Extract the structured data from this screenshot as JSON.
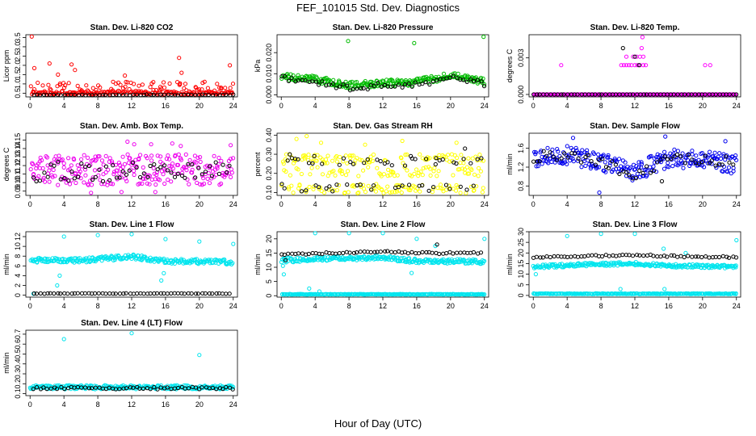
{
  "page": {
    "title": "FEF_101015  Std. Dev. Diagnostics",
    "x_axis_title": "Hour of Day (UTC)"
  },
  "chart_data": [
    {
      "id": "co2",
      "type": "scatter",
      "title": "Stan. Dev. Li-820 CO2",
      "ylabel": "Licor ppm",
      "color": "#ff0000",
      "yticks": [
        "0.5",
        "1.0",
        "1.5",
        "2.0",
        "2.5",
        "3.0",
        "3.5"
      ],
      "ytick_values": [
        0.5,
        1.0,
        1.5,
        2.0,
        2.5,
        3.0,
        3.5
      ],
      "ylim": [
        0.3,
        3.65
      ],
      "xticks": [
        "0",
        "4",
        "8",
        "12",
        "16",
        "20",
        "24"
      ],
      "xlim": [
        -0.5,
        24.5
      ],
      "series": [
        {
          "name": "colored",
          "color": "#ff0000",
          "baseline": 0.42,
          "noise_hi": 0.9,
          "noise_lo": 0.05,
          "spread": 0.7,
          "outliers": [
            [
              0.2,
              3.55
            ],
            [
              0.5,
              1.85
            ],
            [
              2.3,
              2.1
            ],
            [
              4.9,
              2.05
            ],
            [
              5.3,
              1.75
            ],
            [
              11.2,
              1.45
            ],
            [
              17.6,
              2.4
            ],
            [
              17.9,
              1.6
            ],
            [
              23.6,
              2.0
            ],
            [
              3.3,
              1.5
            ]
          ]
        },
        {
          "name": "black",
          "color": "#000000",
          "baseline": 0.41,
          "spread": 0.02
        }
      ]
    },
    {
      "id": "pressure",
      "type": "scatter",
      "title": "Stan. Dev. Li-820 Pressure",
      "ylabel": "kPa",
      "color": "#00aa00",
      "yticks": [
        "0.000",
        "0.010",
        "0.020"
      ],
      "ytick_values": [
        0,
        0.01,
        0.02
      ],
      "ylim": [
        -0.001,
        0.0285
      ],
      "xticks": [
        "0",
        "4",
        "8",
        "12",
        "16",
        "20",
        "24"
      ],
      "xlim": [
        -0.5,
        24.5
      ],
      "series": [
        {
          "name": "colored",
          "color": "#00bb00",
          "trend": [
            [
              0,
              0.0085
            ],
            [
              4,
              0.0075
            ],
            [
              8,
              0.0045
            ],
            [
              12,
              0.0055
            ],
            [
              16,
              0.006
            ],
            [
              20,
              0.009
            ],
            [
              24,
              0.0065
            ]
          ],
          "spread": 0.0016,
          "outliers": [
            [
              7.9,
              0.0255
            ],
            [
              15.7,
              0.0245
            ],
            [
              23.9,
              0.0275
            ]
          ]
        },
        {
          "name": "black",
          "color": "#000000",
          "trend": [
            [
              0,
              0.0075
            ],
            [
              4,
              0.0065
            ],
            [
              8,
              0.0035
            ],
            [
              12,
              0.0045
            ],
            [
              16,
              0.005
            ],
            [
              20,
              0.008
            ],
            [
              24,
              0.005
            ]
          ],
          "spread": 0.0015
        }
      ]
    },
    {
      "id": "temp",
      "type": "scatter",
      "title": "Stan. Dev. Li-820 Temp.",
      "ylabel": "degrees C",
      "color": "#ff00ff",
      "yticks": [
        "0.000",
        "0.003"
      ],
      "ytick_values": [
        0,
        0.003
      ],
      "ylim": [
        -0.0002,
        0.0049
      ],
      "xticks": [
        "0",
        "4",
        "8",
        "12",
        "16",
        "20",
        "24"
      ],
      "xlim": [
        -0.5,
        24.5
      ],
      "series": [
        {
          "name": "colored",
          "color": "#ff00ff",
          "baseline": 0,
          "spread": 0,
          "outliers": [
            [
              3.3,
              0.0024
            ],
            [
              10.4,
              0.0024
            ],
            [
              10.7,
              0.0024
            ],
            [
              11.0,
              0.0024
            ],
            [
              11.3,
              0.0024
            ],
            [
              11.6,
              0.0024
            ],
            [
              12.0,
              0.0024
            ],
            [
              12.3,
              0.0024
            ],
            [
              12.6,
              0.0024
            ],
            [
              13.0,
              0.0024
            ],
            [
              13.3,
              0.0024
            ],
            [
              11.0,
              0.0031
            ],
            [
              11.8,
              0.0031
            ],
            [
              12.2,
              0.0031
            ],
            [
              12.6,
              0.0031
            ],
            [
              13.0,
              0.0031
            ],
            [
              12.8,
              0.0038
            ],
            [
              12.9,
              0.0047
            ],
            [
              20.3,
              0.0024
            ],
            [
              20.9,
              0.0024
            ]
          ]
        },
        {
          "name": "black",
          "color": "#000000",
          "baseline": 0,
          "spread": 0,
          "outliers": [
            [
              10.6,
              0.0038
            ],
            [
              12.0,
              0.0031
            ],
            [
              12.5,
              0.0024
            ]
          ]
        }
      ]
    },
    {
      "id": "ambbox",
      "type": "scatter",
      "title": "Stan. Dev. Amb. Box Temp.",
      "ylabel": "degrees C",
      "color": "#ff00ff",
      "yticks": [
        "0.09",
        "0.10",
        "0.11",
        "0.12",
        "0.13",
        "0.14",
        "0.15"
      ],
      "ytick_values": [
        0.09,
        0.1,
        0.11,
        0.12,
        0.13,
        0.14,
        0.15
      ],
      "ylim": [
        0.085,
        0.158
      ],
      "xticks": [
        "0",
        "4",
        "8",
        "12",
        "16",
        "20",
        "24"
      ],
      "xlim": [
        -0.5,
        24.5
      ],
      "series": [
        {
          "name": "colored",
          "color": "#ee00ee",
          "baseline": 0.115,
          "spread": 0.018,
          "outliers": [
            [
              11.5,
              0.148
            ],
            [
              12.3,
              0.145
            ],
            [
              14.3,
              0.145
            ],
            [
              16.8,
              0.146
            ],
            [
              17.8,
              0.143
            ],
            [
              23.7,
              0.144
            ],
            [
              7.2,
              0.088
            ],
            [
              10.8,
              0.089
            ],
            [
              14.8,
              0.089
            ]
          ]
        },
        {
          "name": "black",
          "color": "#000000",
          "baseline": 0.113,
          "spread": 0.012
        }
      ]
    },
    {
      "id": "rh",
      "type": "scatter",
      "title": "Stan. Dev. Gas Stream RH",
      "ylabel": "percent",
      "color": "#ffff00",
      "yticks": [
        "0.10",
        "0.20",
        "0.30",
        "0.40"
      ],
      "ytick_values": [
        0.1,
        0.2,
        0.3,
        0.4
      ],
      "ylim": [
        0.085,
        0.41
      ],
      "xticks": [
        "0",
        "4",
        "8",
        "12",
        "16",
        "20",
        "24"
      ],
      "xlim": [
        -0.5,
        24.5
      ],
      "series": [
        {
          "name": "colored",
          "color": "#ffff00",
          "bands": [
            0.12,
            0.21,
            0.275
          ],
          "spread": 0.025,
          "outliers": [
            [
              1.8,
              0.38
            ],
            [
              3.0,
              0.395
            ],
            [
              4.7,
              0.36
            ],
            [
              9.9,
              0.35
            ],
            [
              14.3,
              0.37
            ],
            [
              20.7,
              0.36
            ]
          ]
        },
        {
          "name": "black",
          "color": "#000000",
          "bands": [
            0.125,
            0.26
          ],
          "spread": 0.02,
          "outliers": [
            [
              1.0,
              0.3
            ],
            [
              3.9,
              0.29
            ],
            [
              15.3,
              0.29
            ],
            [
              21.7,
              0.33
            ],
            [
              18.3,
              0.28
            ]
          ]
        }
      ]
    },
    {
      "id": "sample",
      "type": "scatter",
      "title": "Stan. Dev. Sample Flow",
      "ylabel": "ml/min",
      "color": "#0000ff",
      "yticks": [
        "0.8",
        "1.2",
        "1.6"
      ],
      "ytick_values": [
        0.8,
        1.2,
        1.6
      ],
      "ylim": [
        0.6,
        1.92
      ],
      "xticks": [
        "0",
        "4",
        "8",
        "12",
        "16",
        "20",
        "24"
      ],
      "xlim": [
        -0.5,
        24.5
      ],
      "series": [
        {
          "name": "colored",
          "color": "#0000ee",
          "trend": [
            [
              0,
              1.4
            ],
            [
              4,
              1.45
            ],
            [
              8,
              1.3
            ],
            [
              12,
              1.1
            ],
            [
              16,
              1.4
            ],
            [
              20,
              1.35
            ],
            [
              24,
              1.25
            ]
          ],
          "spread": 0.2,
          "outliers": [
            [
              7.8,
              0.66
            ],
            [
              4.7,
              1.82
            ],
            [
              15.6,
              1.85
            ],
            [
              22.7,
              1.75
            ]
          ]
        },
        {
          "name": "black",
          "color": "#000000",
          "trend": [
            [
              0,
              1.42
            ],
            [
              4,
              1.45
            ],
            [
              8,
              1.3
            ],
            [
              12,
              1.05
            ],
            [
              16,
              1.35
            ],
            [
              20,
              1.35
            ],
            [
              24,
              1.3
            ]
          ],
          "spread": 0.12,
          "outliers": [
            [
              15.2,
              0.9
            ]
          ]
        }
      ]
    },
    {
      "id": "line1",
      "type": "scatter",
      "title": "Stan. Dev. Line 1 Flow",
      "ylabel": "ml/min",
      "color": "#00e5ee",
      "yticks": [
        "0",
        "2",
        "4",
        "6",
        "8",
        "10",
        "12"
      ],
      "ytick_values": [
        0,
        2,
        4,
        6,
        8,
        10,
        12
      ],
      "ylim": [
        -0.4,
        13
      ],
      "xticks": [
        "0",
        "4",
        "8",
        "12",
        "16",
        "20",
        "24"
      ],
      "xlim": [
        -0.5,
        24.5
      ],
      "series": [
        {
          "name": "colored",
          "color": "#00e5ee",
          "trend": [
            [
              0,
              7.2
            ],
            [
              6,
              7.1
            ],
            [
              12,
              7.9
            ],
            [
              16,
              7.0
            ],
            [
              24,
              6.8
            ]
          ],
          "spread": 0.5,
          "outliers": [
            [
              0.4,
              0.3
            ],
            [
              3.2,
              2.0
            ],
            [
              3.5,
              4.0
            ],
            [
              4.0,
              12.0
            ],
            [
              8.0,
              12.3
            ],
            [
              12.0,
              12.5
            ],
            [
              16.0,
              11.5
            ],
            [
              20.0,
              11.0
            ],
            [
              24.0,
              10.5
            ],
            [
              15.8,
              4.5
            ],
            [
              15.5,
              3.0
            ]
          ]
        },
        {
          "name": "black",
          "color": "#000000",
          "baseline": 0.35,
          "spread": 0.05
        }
      ]
    },
    {
      "id": "line2",
      "type": "scatter",
      "title": "Stan. Dev. Line 2 Flow",
      "ylabel": "ml/min",
      "color": "#00e5ee",
      "yticks": [
        "0",
        "5",
        "10",
        "15",
        "20"
      ],
      "ytick_values": [
        0,
        5,
        10,
        15,
        20
      ],
      "ylim": [
        -0.5,
        22.5
      ],
      "xticks": [
        "0",
        "4",
        "8",
        "12",
        "16",
        "20",
        "24"
      ],
      "xlim": [
        -0.5,
        24.5
      ],
      "series": [
        {
          "name": "colored",
          "color": "#00e5ee",
          "trend": [
            [
              0,
              12.5
            ],
            [
              6,
              13.0
            ],
            [
              12,
              13.5
            ],
            [
              16,
              12.2
            ],
            [
              24,
              12.0
            ]
          ],
          "spread": 0.8,
          "outliers": [
            [
              0.3,
              7.5
            ],
            [
              0.2,
              10.5
            ],
            [
              4.0,
              22.0
            ],
            [
              8.0,
              22.0
            ],
            [
              12.0,
              22.0
            ],
            [
              16.0,
              20.0
            ],
            [
              18.2,
              17.5
            ],
            [
              24.0,
              20.0
            ],
            [
              3.3,
              2.5
            ],
            [
              4.5,
              1.5
            ],
            [
              15.4,
              8.0
            ]
          ]
        },
        {
          "name": "colored-low",
          "color": "#00e5ee",
          "baseline": 0.5,
          "spread": 0.1
        },
        {
          "name": "black",
          "color": "#000000",
          "trend": [
            [
              0,
              14.5
            ],
            [
              6,
              15.0
            ],
            [
              12,
              15.5
            ],
            [
              16,
              15.0
            ],
            [
              24,
              15.0
            ]
          ],
          "spread": 0.3,
          "outliers": [
            [
              18.4,
              18.0
            ],
            [
              0.5,
              12.5
            ]
          ]
        }
      ]
    },
    {
      "id": "line3",
      "type": "scatter",
      "title": "Stan. Dev. Line 3 Flow",
      "ylabel": "ml/min",
      "color": "#00e5ee",
      "yticks": [
        "0",
        "5",
        "10",
        "15",
        "20",
        "25",
        "30"
      ],
      "ytick_values": [
        0,
        5,
        10,
        15,
        20,
        25,
        30
      ],
      "ylim": [
        -0.8,
        30
      ],
      "xticks": [
        "0",
        "4",
        "8",
        "12",
        "16",
        "20",
        "24"
      ],
      "xlim": [
        -0.5,
        24.5
      ],
      "series": [
        {
          "name": "colored",
          "color": "#00e5ee",
          "trend": [
            [
              0,
              13.5
            ],
            [
              6,
              14.5
            ],
            [
              12,
              15.0
            ],
            [
              16,
              14.0
            ],
            [
              24,
              13.5
            ]
          ],
          "spread": 0.8,
          "outliers": [
            [
              0.3,
              10
            ],
            [
              4.0,
              28.0
            ],
            [
              8.0,
              29.0
            ],
            [
              12.0,
              29.0
            ],
            [
              15.4,
              22.0
            ],
            [
              18.0,
              20.0
            ],
            [
              24.0,
              26.0
            ],
            [
              15.5,
              3.0
            ],
            [
              10.3,
              3.0
            ]
          ]
        },
        {
          "name": "colored-low",
          "color": "#00e5ee",
          "baseline": 0.8,
          "spread": 0.15
        },
        {
          "name": "black",
          "color": "#000000",
          "trend": [
            [
              0,
              18.0
            ],
            [
              6,
              18.5
            ],
            [
              12,
              19.0
            ],
            [
              16,
              18.5
            ],
            [
              24,
              18.0
            ]
          ],
          "spread": 0.4
        }
      ]
    },
    {
      "id": "line4",
      "type": "scatter",
      "title": "Stan. Dev. Line 4 (LT) Flow",
      "ylabel": "ml/min",
      "color": "#00e5ee",
      "yticks": [
        "0.1",
        "0.2",
        "0.3",
        "0.4",
        "0.5",
        "0.6",
        "0.7"
      ],
      "ytick_values": [
        0.1,
        0.2,
        0.3,
        0.4,
        0.5,
        0.6,
        0.7
      ],
      "ylim": [
        0.08,
        0.74
      ],
      "xticks": [
        "0",
        "4",
        "8",
        "12",
        "16",
        "20",
        "24"
      ],
      "xlim": [
        -0.5,
        24.5
      ],
      "series": [
        {
          "name": "colored",
          "color": "#00e5ee",
          "baseline": 0.165,
          "spread": 0.02,
          "outliers": [
            [
              4.0,
              0.65
            ],
            [
              12.0,
              0.71
            ],
            [
              20.0,
              0.49
            ]
          ]
        },
        {
          "name": "black",
          "color": "#000000",
          "baseline": 0.155,
          "spread": 0.012
        }
      ]
    }
  ]
}
